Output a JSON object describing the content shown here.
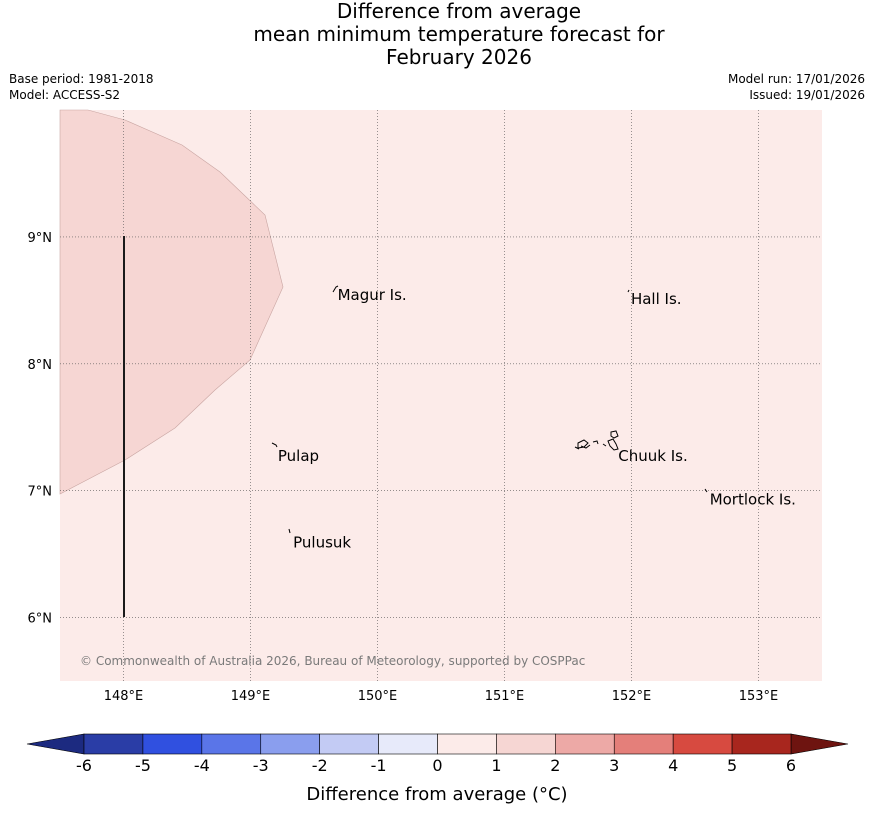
{
  "title": {
    "line1": "Difference from average",
    "line2": "mean minimum temperature forecast for",
    "line3": "February 2026"
  },
  "meta": {
    "base_period": "Base period: 1981-2018",
    "model": "Model: ACCESS-S2",
    "model_run": "Model run: 17/01/2026",
    "issued": "Issued: 19/01/2026"
  },
  "map": {
    "lon_range": [
      147.5,
      153.5
    ],
    "lat_range": [
      5.5,
      10.0
    ],
    "lon_ticks": [
      {
        "value": 148,
        "label": "148°E"
      },
      {
        "value": 149,
        "label": "149°E"
      },
      {
        "value": 150,
        "label": "150°E"
      },
      {
        "value": 151,
        "label": "151°E"
      },
      {
        "value": 152,
        "label": "152°E"
      },
      {
        "value": 153,
        "label": "153°E"
      }
    ],
    "lat_ticks": [
      {
        "value": 9,
        "label": "9°N"
      },
      {
        "value": 8,
        "label": "8°N"
      },
      {
        "value": 7,
        "label": "7°N"
      },
      {
        "value": 6,
        "label": "6°N"
      }
    ],
    "background_category": "0 to 1",
    "background_color": "#fcebe9",
    "region_category": "1 to 2",
    "region_color": "#f6d6d3",
    "places": [
      {
        "name": "Magur Is.",
        "lon": 149.67,
        "lat": 8.55
      },
      {
        "name": "Hall Is.",
        "lon": 151.98,
        "lat": 8.52
      },
      {
        "name": "Pulap",
        "lon": 149.2,
        "lat": 7.28
      },
      {
        "name": "Chuuk Is.",
        "lon": 151.88,
        "lat": 7.28
      },
      {
        "name": "Mortlock Is.",
        "lon": 152.6,
        "lat": 6.94
      },
      {
        "name": "Pulusuk",
        "lon": 149.32,
        "lat": 6.6
      }
    ],
    "copyright": "© Commonwealth of Australia 2026, Bureau of Meteorology, supported by COSPPac"
  },
  "colorbar": {
    "ticks": [
      "-6",
      "-5",
      "-4",
      "-3",
      "-2",
      "-1",
      "0",
      "1",
      "2",
      "3",
      "4",
      "5",
      "6"
    ],
    "colors": [
      "#2a3da6",
      "#3050e0",
      "#5a75e8",
      "#8a9eee",
      "#c3cbf4",
      "#e7eafa",
      "#fcebe9",
      "#f6d6d3",
      "#eda9a6",
      "#e47f7a",
      "#d74a40",
      "#a8261e"
    ],
    "under_color": "#1c2a80",
    "over_color": "#6e1410",
    "label": "Difference from average (°C)"
  }
}
